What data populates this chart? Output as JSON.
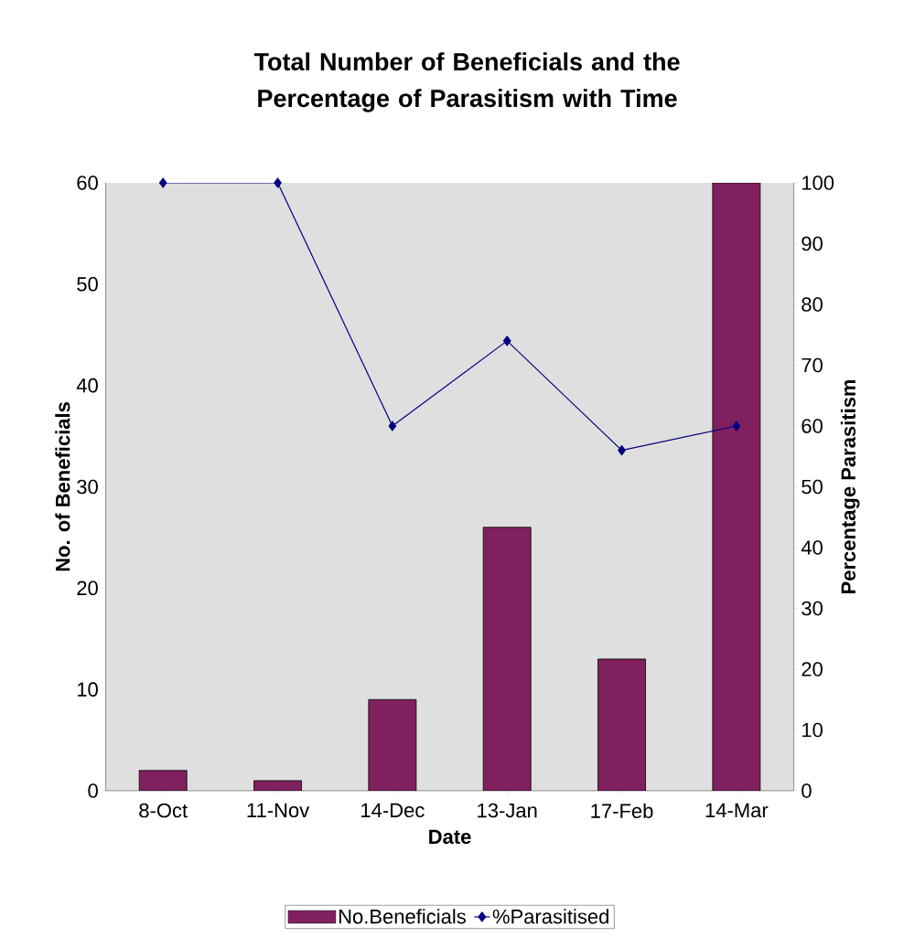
{
  "chart_data": {
    "type": "bar",
    "title": "Total Number of Beneficials and the Percentage of Parasitism with Time",
    "xlabel": "Date",
    "ylabel": "No. of Beneficials",
    "y2label": "Percentage Parasitism",
    "categories": [
      "8-Oct",
      "11-Nov",
      "14-Dec",
      "13-Jan",
      "17-Feb",
      "14-Mar"
    ],
    "series": [
      {
        "name": "No.Beneficials",
        "color": "#80205f",
        "values": [
          2,
          1,
          9,
          26,
          13,
          60
        ]
      },
      {
        "name": "%Parasitised",
        "type": "line",
        "axis": "y2",
        "color": "#000080",
        "values": [
          100,
          100,
          60,
          74,
          56,
          60
        ]
      }
    ],
    "ylim": [
      0,
      60
    ],
    "yticks": [
      0,
      10,
      20,
      30,
      40,
      50,
      60
    ],
    "y2lim": [
      0,
      100
    ],
    "y2ticks": [
      0,
      10,
      20,
      30,
      40,
      50,
      60,
      70,
      80,
      90,
      100
    ],
    "legend": "bottom",
    "marker": "diamond",
    "line_style": "solid"
  }
}
